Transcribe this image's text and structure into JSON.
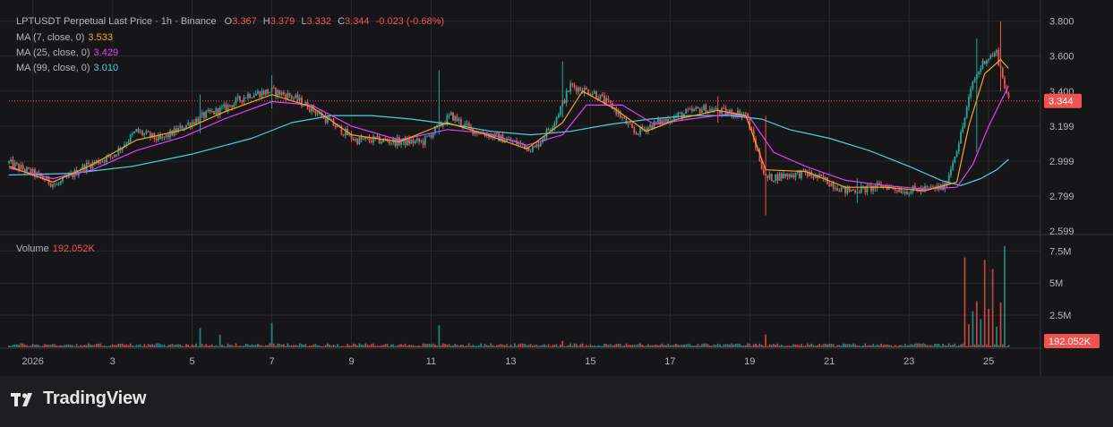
{
  "header": {
    "symbol_line": "LPTUSDT Perpetual Last Price · 1h · Binance",
    "open_label": "O",
    "open": "3.367",
    "high_label": "H",
    "high": "3.379",
    "low_label": "L",
    "low": "3.332",
    "close_label": "C",
    "close": "3.344",
    "change": "-0.023 (-0.68%)"
  },
  "indicators": [
    {
      "label": "MA (7, close, 0)",
      "value": "3.533",
      "color": "#f5a623"
    },
    {
      "label": "MA (25, close, 0)",
      "value": "3.429",
      "color": "#e040fb"
    },
    {
      "label": "MA (99, close, 0)",
      "value": "3.010",
      "color": "#4dd0e1"
    }
  ],
  "volume_legend": {
    "label": "Volume",
    "value": "192.052K"
  },
  "brand": "TradingView",
  "colors": {
    "up": "#26a69a",
    "down": "#ef5350",
    "ma7": "#f5a623",
    "ma25": "#e040fb",
    "ma99": "#4dd0e1",
    "background": "#161619",
    "grid": "#2a2a2e",
    "text": "#b2b5be"
  },
  "chart_data": {
    "type": "candlestick",
    "interval": "1h",
    "price_axis": {
      "ticks": [
        "3.800",
        "3.600",
        "3.400",
        "3.199",
        "2.999",
        "2.799",
        "2.599"
      ],
      "range": [
        2.59,
        3.87
      ]
    },
    "last_price": "3.344",
    "volume_axis": {
      "ticks": [
        "7.5M",
        "5M",
        "2.5M"
      ],
      "range": [
        0,
        8500000
      ]
    },
    "last_volume": "192.052K",
    "x_axis": {
      "ticks": [
        "2026",
        "3",
        "5",
        "7",
        "9",
        "11",
        "13",
        "15",
        "17",
        "19",
        "21",
        "23",
        "25"
      ],
      "day_range": [
        0.4,
        26.3
      ]
    },
    "close_path": [
      [
        0.4,
        2.99
      ],
      [
        1.1,
        2.92
      ],
      [
        1.6,
        2.86
      ],
      [
        2.3,
        2.97
      ],
      [
        3.0,
        3.03
      ],
      [
        3.6,
        3.17
      ],
      [
        4.2,
        3.12
      ],
      [
        4.8,
        3.2
      ],
      [
        5.3,
        3.26
      ],
      [
        5.8,
        3.3
      ],
      [
        6.4,
        3.38
      ],
      [
        7.0,
        3.4
      ],
      [
        7.5,
        3.37
      ],
      [
        8.0,
        3.3
      ],
      [
        8.6,
        3.2
      ],
      [
        9.1,
        3.12
      ],
      [
        9.6,
        3.12
      ],
      [
        10.2,
        3.11
      ],
      [
        10.8,
        3.11
      ],
      [
        11.2,
        3.2
      ],
      [
        11.5,
        3.26
      ],
      [
        12.0,
        3.18
      ],
      [
        12.6,
        3.14
      ],
      [
        13.2,
        3.1
      ],
      [
        13.6,
        3.07
      ],
      [
        14.1,
        3.23
      ],
      [
        14.5,
        3.43
      ],
      [
        15.1,
        3.39
      ],
      [
        15.6,
        3.3
      ],
      [
        16.1,
        3.16
      ],
      [
        16.7,
        3.22
      ],
      [
        17.2,
        3.26
      ],
      [
        17.8,
        3.3
      ],
      [
        18.4,
        3.28
      ],
      [
        18.9,
        3.27
      ],
      [
        19.4,
        2.9
      ],
      [
        19.9,
        2.92
      ],
      [
        20.4,
        2.93
      ],
      [
        20.9,
        2.89
      ],
      [
        21.4,
        2.83
      ],
      [
        21.9,
        2.84
      ],
      [
        22.4,
        2.86
      ],
      [
        22.9,
        2.83
      ],
      [
        23.4,
        2.84
      ],
      [
        23.9,
        2.85
      ],
      [
        24.3,
        3.15
      ],
      [
        24.6,
        3.45
      ],
      [
        24.9,
        3.58
      ],
      [
        25.2,
        3.62
      ],
      [
        25.5,
        3.34
      ]
    ],
    "ma7_path": [
      [
        0.4,
        2.97
      ],
      [
        1.5,
        2.88
      ],
      [
        2.5,
        2.98
      ],
      [
        3.6,
        3.12
      ],
      [
        4.8,
        3.18
      ],
      [
        5.8,
        3.28
      ],
      [
        7.0,
        3.38
      ],
      [
        8.0,
        3.31
      ],
      [
        9.0,
        3.15
      ],
      [
        10.2,
        3.11
      ],
      [
        11.4,
        3.22
      ],
      [
        12.4,
        3.15
      ],
      [
        13.4,
        3.07
      ],
      [
        14.3,
        3.22
      ],
      [
        14.8,
        3.4
      ],
      [
        15.6,
        3.3
      ],
      [
        16.4,
        3.17
      ],
      [
        17.2,
        3.24
      ],
      [
        18.2,
        3.29
      ],
      [
        18.9,
        3.26
      ],
      [
        19.4,
        2.95
      ],
      [
        20.4,
        2.94
      ],
      [
        21.4,
        2.85
      ],
      [
        22.4,
        2.85
      ],
      [
        23.4,
        2.83
      ],
      [
        24.2,
        2.88
      ],
      [
        24.5,
        3.2
      ],
      [
        24.9,
        3.5
      ],
      [
        25.3,
        3.58
      ],
      [
        25.5,
        3.53
      ]
    ],
    "ma25_path": [
      [
        0.4,
        2.96
      ],
      [
        1.5,
        2.9
      ],
      [
        2.5,
        2.95
      ],
      [
        3.6,
        3.06
      ],
      [
        4.8,
        3.14
      ],
      [
        5.8,
        3.24
      ],
      [
        7.0,
        3.34
      ],
      [
        8.0,
        3.32
      ],
      [
        9.0,
        3.2
      ],
      [
        10.2,
        3.12
      ],
      [
        11.4,
        3.18
      ],
      [
        12.4,
        3.16
      ],
      [
        13.4,
        3.09
      ],
      [
        14.3,
        3.15
      ],
      [
        14.9,
        3.32
      ],
      [
        15.8,
        3.32
      ],
      [
        16.6,
        3.21
      ],
      [
        17.5,
        3.24
      ],
      [
        18.5,
        3.27
      ],
      [
        19.0,
        3.25
      ],
      [
        19.6,
        3.05
      ],
      [
        20.4,
        2.97
      ],
      [
        21.4,
        2.89
      ],
      [
        22.4,
        2.86
      ],
      [
        23.4,
        2.84
      ],
      [
        24.2,
        2.85
      ],
      [
        24.6,
        2.98
      ],
      [
        25.0,
        3.2
      ],
      [
        25.5,
        3.43
      ]
    ],
    "ma99_path": [
      [
        0.4,
        2.92
      ],
      [
        2.0,
        2.93
      ],
      [
        3.5,
        2.97
      ],
      [
        5.0,
        3.04
      ],
      [
        6.5,
        3.13
      ],
      [
        7.5,
        3.22
      ],
      [
        8.5,
        3.26
      ],
      [
        9.5,
        3.26
      ],
      [
        10.5,
        3.24
      ],
      [
        11.5,
        3.21
      ],
      [
        12.5,
        3.17
      ],
      [
        13.5,
        3.15
      ],
      [
        14.5,
        3.17
      ],
      [
        15.5,
        3.21
      ],
      [
        16.5,
        3.24
      ],
      [
        17.5,
        3.26
      ],
      [
        18.5,
        3.26
      ],
      [
        19.3,
        3.24
      ],
      [
        20.0,
        3.18
      ],
      [
        21.0,
        3.13
      ],
      [
        22.0,
        3.06
      ],
      [
        23.0,
        2.97
      ],
      [
        23.8,
        2.89
      ],
      [
        24.3,
        2.86
      ],
      [
        24.8,
        2.9
      ],
      [
        25.2,
        2.95
      ],
      [
        25.5,
        3.01
      ]
    ],
    "spikes": [
      {
        "day": 5.2,
        "high": 3.38,
        "low": 3.16
      },
      {
        "day": 7.0,
        "high": 3.49,
        "low": 3.3
      },
      {
        "day": 11.2,
        "high": 3.52,
        "low": 3.15
      },
      {
        "day": 14.3,
        "high": 3.57,
        "low": 3.25
      },
      {
        "day": 18.2,
        "high": 3.37,
        "low": 3.22
      },
      {
        "day": 19.4,
        "high": 3.26,
        "low": 2.69
      },
      {
        "day": 21.7,
        "high": 2.9,
        "low": 2.76
      },
      {
        "day": 24.7,
        "high": 3.7,
        "low": 3.05
      },
      {
        "day": 25.3,
        "high": 3.8,
        "low": 3.4
      }
    ],
    "volume_baseline": 200000,
    "volume_spikes": [
      {
        "day": 5.2,
        "value": 1500000
      },
      {
        "day": 5.7,
        "value": 1000000
      },
      {
        "day": 7.0,
        "value": 1900000
      },
      {
        "day": 11.2,
        "value": 1700000
      },
      {
        "day": 14.3,
        "value": 500000
      },
      {
        "day": 19.4,
        "value": 1000000
      },
      {
        "day": 24.4,
        "value": 7000000
      },
      {
        "day": 24.5,
        "value": 1800000
      },
      {
        "day": 24.6,
        "value": 2800000
      },
      {
        "day": 24.7,
        "value": 3600000
      },
      {
        "day": 24.8,
        "value": 2200000
      },
      {
        "day": 24.9,
        "value": 6800000
      },
      {
        "day": 25.0,
        "value": 3000000
      },
      {
        "day": 25.1,
        "value": 6100000
      },
      {
        "day": 25.2,
        "value": 1600000
      },
      {
        "day": 25.3,
        "value": 3500000
      },
      {
        "day": 25.4,
        "value": 7900000
      },
      {
        "day": 25.5,
        "value": 192052
      }
    ]
  }
}
